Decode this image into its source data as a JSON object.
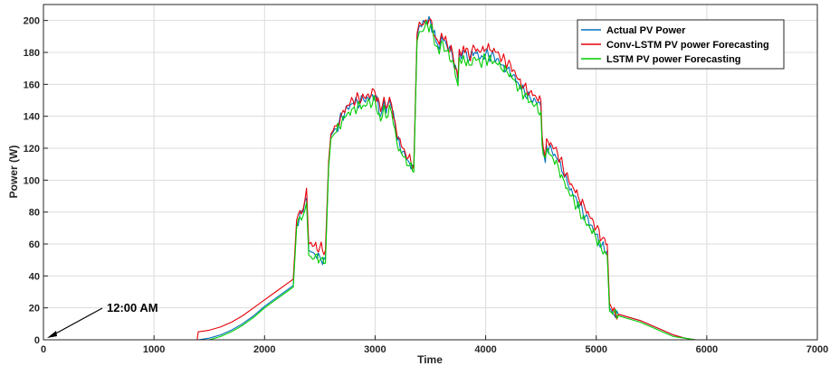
{
  "chart_data": {
    "type": "line",
    "xlabel": "Time",
    "ylabel": "Power (W)",
    "xlim": [
      0,
      7000
    ],
    "ylim": [
      0,
      210
    ],
    "xticks": [
      0,
      1000,
      2000,
      3000,
      4000,
      5000,
      6000,
      7000
    ],
    "yticks": [
      0,
      20,
      40,
      60,
      80,
      100,
      120,
      140,
      160,
      180,
      200
    ],
    "grid": true,
    "legend_position": "top-right",
    "annotation": {
      "text": "12:00 AM",
      "x": 0,
      "y": 0
    },
    "series": [
      {
        "name": "Actual PV Power",
        "color": "#0072BD",
        "x": [
          0,
          1400,
          1500,
          1600,
          1700,
          1800,
          1900,
          2000,
          2100,
          2200,
          2260,
          2290,
          2320,
          2350,
          2380,
          2400,
          2420,
          2450,
          2500,
          2550,
          2580,
          2600,
          2620,
          2650,
          2700,
          2750,
          2800,
          2900,
          3000,
          3050,
          3080,
          3100,
          3130,
          3150,
          3180,
          3200,
          3250,
          3300,
          3350,
          3380,
          3400,
          3420,
          3450,
          3500,
          3550,
          3580,
          3600,
          3650,
          3700,
          3750,
          3760,
          3780,
          3800,
          3850,
          3900,
          3950,
          4000,
          4050,
          4100,
          4150,
          4200,
          4250,
          4300,
          4350,
          4400,
          4450,
          4500,
          4510,
          4520,
          4540,
          4550,
          4600,
          4650,
          4700,
          4750,
          4800,
          4850,
          4900,
          4950,
          5000,
          5050,
          5100,
          5120,
          5140,
          5150,
          5200,
          5300,
          5400,
          5500,
          5600,
          5700,
          5800,
          5900,
          6000,
          6500,
          7000
        ],
        "values": [
          0,
          0,
          1,
          3,
          6,
          10,
          15,
          21,
          26,
          31,
          34,
          72,
          79,
          80,
          89,
          56,
          55,
          54,
          52,
          50,
          110,
          128,
          130,
          132,
          140,
          145,
          148,
          150,
          153,
          140,
          150,
          142,
          150,
          145,
          135,
          125,
          118,
          112,
          108,
          190,
          197,
          196,
          199,
          200,
          187,
          182,
          190,
          184,
          178,
          162,
          180,
          176,
          181,
          175,
          180,
          176,
          179,
          178,
          176,
          172,
          170,
          166,
          160,
          156,
          152,
          150,
          146,
          125,
          118,
          111,
          122,
          118,
          113,
          104,
          96,
          90,
          84,
          77,
          72,
          66,
          59,
          56,
          20,
          18,
          17,
          16,
          14,
          12,
          9,
          6,
          3,
          1,
          0,
          0,
          0,
          0
        ]
      },
      {
        "name": "Conv-LSTM PV power Forecasting",
        "color": "#E8000B",
        "x": [
          0,
          1390,
          1400,
          1500,
          1600,
          1700,
          1800,
          1900,
          2000,
          2100,
          2200,
          2260,
          2290,
          2320,
          2350,
          2380,
          2400,
          2420,
          2450,
          2500,
          2550,
          2580,
          2600,
          2620,
          2650,
          2700,
          2750,
          2800,
          2900,
          3000,
          3050,
          3080,
          3100,
          3130,
          3150,
          3180,
          3200,
          3250,
          3300,
          3350,
          3380,
          3400,
          3420,
          3450,
          3500,
          3550,
          3580,
          3600,
          3650,
          3700,
          3750,
          3760,
          3780,
          3800,
          3850,
          3900,
          3950,
          4000,
          4050,
          4100,
          4150,
          4200,
          4250,
          4300,
          4350,
          4400,
          4450,
          4500,
          4510,
          4520,
          4540,
          4550,
          4600,
          4650,
          4700,
          4750,
          4800,
          4850,
          4900,
          4950,
          5000,
          5050,
          5100,
          5120,
          5140,
          5150,
          5200,
          5300,
          5400,
          5500,
          5600,
          5700,
          5800,
          5900,
          6000,
          6500,
          7000
        ],
        "values": [
          0,
          0,
          5,
          6,
          8,
          11,
          15,
          20,
          25,
          30,
          35,
          38,
          75,
          81,
          82,
          95,
          60,
          61,
          59,
          58,
          56,
          112,
          129,
          131,
          134,
          142,
          147,
          150,
          152,
          155,
          143,
          152,
          145,
          152,
          147,
          137,
          127,
          120,
          114,
          110,
          192,
          199,
          197,
          200,
          201,
          189,
          185,
          192,
          186,
          180,
          164,
          182,
          178,
          184,
          177,
          183,
          180,
          182,
          181,
          180,
          176,
          173,
          169,
          163,
          159,
          155,
          153,
          150,
          128,
          121,
          114,
          126,
          122,
          117,
          108,
          100,
          94,
          87,
          82,
          76,
          70,
          63,
          60,
          23,
          20,
          18,
          16,
          14,
          12,
          9,
          6,
          3,
          1,
          0,
          0,
          0,
          0
        ]
      },
      {
        "name": "LSTM PV power Forecasting",
        "color": "#00CC00",
        "x": [
          0,
          1400,
          1500,
          1600,
          1700,
          1800,
          1900,
          2000,
          2100,
          2200,
          2260,
          2290,
          2320,
          2350,
          2380,
          2400,
          2420,
          2450,
          2500,
          2550,
          2580,
          2600,
          2620,
          2650,
          2700,
          2750,
          2800,
          2900,
          3000,
          3050,
          3080,
          3100,
          3130,
          3150,
          3180,
          3200,
          3250,
          3300,
          3350,
          3380,
          3400,
          3420,
          3450,
          3500,
          3550,
          3580,
          3600,
          3650,
          3700,
          3750,
          3760,
          3780,
          3800,
          3850,
          3900,
          3950,
          4000,
          4050,
          4100,
          4150,
          4200,
          4250,
          4300,
          4350,
          4400,
          4450,
          4500,
          4510,
          4520,
          4540,
          4550,
          4600,
          4650,
          4700,
          4750,
          4800,
          4850,
          4900,
          4950,
          5000,
          5050,
          5100,
          5120,
          5140,
          5150,
          5200,
          5300,
          5400,
          5500,
          5600,
          5700,
          5800,
          5900,
          6000,
          6500,
          7000
        ],
        "values": [
          0,
          0,
          0,
          2,
          5,
          9,
          14,
          20,
          25,
          30,
          33,
          70,
          77,
          78,
          86,
          53,
          52,
          51,
          50,
          48,
          108,
          126,
          128,
          130,
          137,
          142,
          145,
          147,
          150,
          137,
          147,
          139,
          147,
          142,
          132,
          122,
          115,
          109,
          105,
          187,
          193,
          193,
          196,
          197,
          184,
          179,
          187,
          181,
          175,
          159,
          177,
          173,
          178,
          172,
          177,
          173,
          176,
          175,
          173,
          169,
          167,
          163,
          157,
          153,
          149,
          147,
          143,
          122,
          116,
          114,
          119,
          115,
          110,
          101,
          93,
          87,
          81,
          74,
          69,
          63,
          56,
          53,
          18,
          17,
          16,
          15,
          13,
          11,
          8,
          5,
          2,
          1,
          0,
          0,
          0,
          0
        ]
      }
    ]
  }
}
